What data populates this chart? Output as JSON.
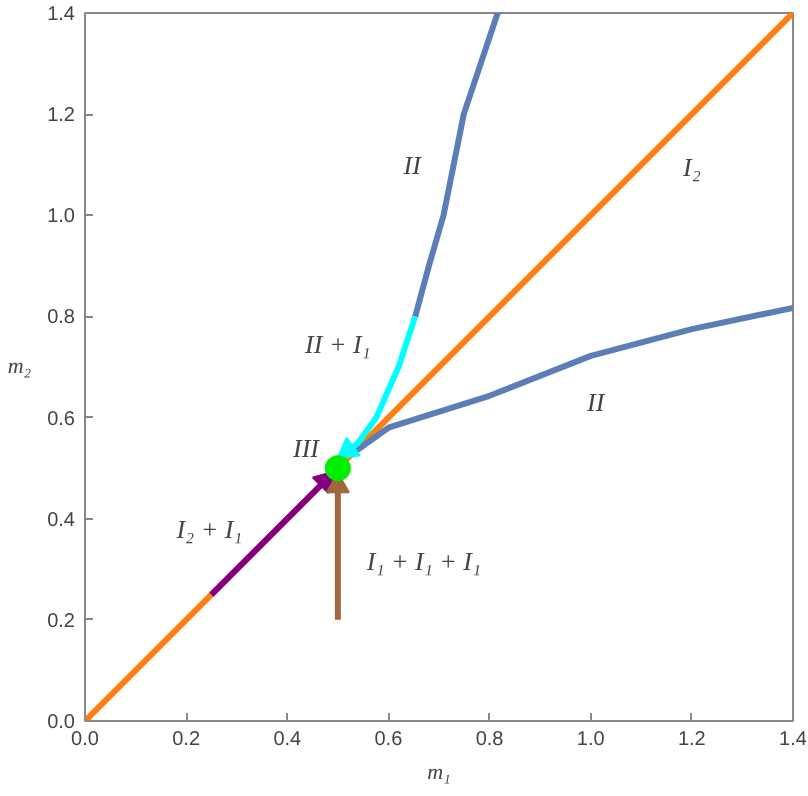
{
  "chart_data": {
    "type": "line",
    "xlabel": "m₁",
    "ylabel": "m₂",
    "xlim": [
      0,
      1.4
    ],
    "ylim": [
      0,
      1.4
    ],
    "xticks": [
      {
        "value": 0,
        "label": "0.0"
      },
      {
        "value": 0.2,
        "label": "0.2"
      },
      {
        "value": 0.4,
        "label": "0.4"
      },
      {
        "value": 0.6,
        "label": "0.6"
      },
      {
        "value": 0.8,
        "label": "0.8"
      },
      {
        "value": 1.0,
        "label": "1.0"
      },
      {
        "value": 1.2,
        "label": "1.2"
      },
      {
        "value": 1.4,
        "label": "1.4"
      }
    ],
    "yticks": [
      {
        "value": 0,
        "label": "0.0"
      },
      {
        "value": 0.2,
        "label": "0.2"
      },
      {
        "value": 0.4,
        "label": "0.4"
      },
      {
        "value": 0.6,
        "label": "0.6"
      },
      {
        "value": 0.8,
        "label": "0.8"
      },
      {
        "value": 1.0,
        "label": "1.0"
      },
      {
        "value": 1.2,
        "label": "1.2"
      },
      {
        "value": 1.4,
        "label": "1.4"
      }
    ],
    "grid": false,
    "series": [
      {
        "color": "#ff7f0e",
        "x": [
          0,
          1.4
        ],
        "values": [
          0,
          1.4
        ]
      },
      {
        "color": "#5b7fb5",
        "x": [
          0.653,
          0.68,
          0.709,
          0.749,
          0.816
        ],
        "values": [
          0.8,
          0.9,
          1.0,
          1.2,
          1.4
        ]
      },
      {
        "color": "#5b7fb5",
        "x": [
          0.53,
          0.6,
          0.8,
          1.0,
          1.2,
          1.4
        ],
        "values": [
          0.53,
          0.58,
          0.643,
          0.722,
          0.775,
          0.817
        ]
      },
      {
        "color": "#00ffff",
        "x": [
          0.653,
          0.62,
          0.576,
          0.54,
          0.52
        ],
        "values": [
          0.8,
          0.7,
          0.6,
          0.55,
          0.535
        ]
      },
      {
        "color": "#800080",
        "x": [
          0.25,
          0.475
        ],
        "values": [
          0.25,
          0.475
        ]
      },
      {
        "color": "#a0663c",
        "x": [
          0.5,
          0.5
        ],
        "values": [
          0.2,
          0.465
        ]
      },
      {
        "type": "scatter",
        "color": "#00ee00",
        "marker": "circle",
        "x": [
          0.5
        ],
        "values": [
          0.5
        ]
      }
    ],
    "annotations": [
      "II",
      "I₂",
      "II + I₁",
      "II",
      "III",
      "I₂ + I₁",
      "I₁ + I₁ + I₁"
    ]
  }
}
